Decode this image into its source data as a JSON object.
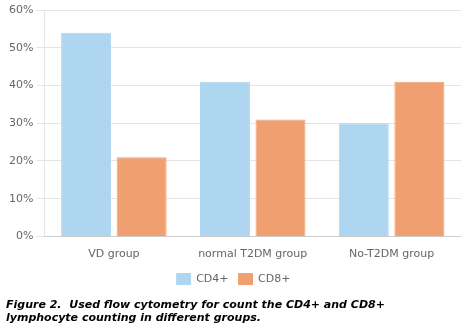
{
  "chart_data": {
    "type": "bar",
    "categories": [
      "VD group",
      "normal T2DM group",
      "No-T2DM group"
    ],
    "series": [
      {
        "name": "CD4+",
        "color": "#aed6f1",
        "values": [
          0.54,
          0.41,
          0.3
        ]
      },
      {
        "name": "CD8+",
        "color": "#f0a070",
        "values": [
          0.21,
          0.31,
          0.41
        ]
      }
    ],
    "ylim": [
      0,
      0.6
    ],
    "yticks": [
      {
        "value": 0.0,
        "label": "0%"
      },
      {
        "value": 0.1,
        "label": "10%"
      },
      {
        "value": 0.2,
        "label": "20%"
      },
      {
        "value": 0.3,
        "label": "30%"
      },
      {
        "value": 0.4,
        "label": "40%"
      },
      {
        "value": 0.5,
        "label": "50%"
      },
      {
        "value": 0.6,
        "label": "60%"
      }
    ],
    "grid": true,
    "legend": "bottom",
    "caption": [
      "Figure 2.  Used flow cytometry for count the CD4+ and CD8+",
      "lymphocyte counting in different groups."
    ]
  }
}
